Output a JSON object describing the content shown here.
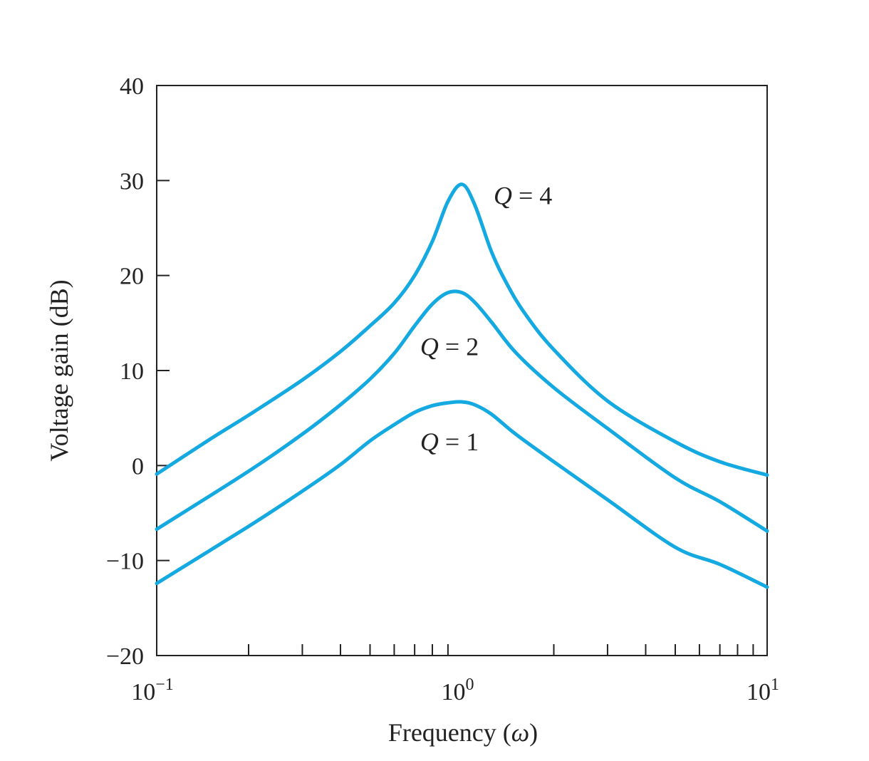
{
  "chart_data": {
    "type": "line",
    "title": "",
    "xlabel_text": "Frequency (",
    "xlabel_symbol": "ω",
    "xlabel_close": ")",
    "ylabel": "Voltage gain (dB)",
    "x_scale": "log",
    "xlim": [
      0.1,
      10
    ],
    "ylim": [
      -20,
      40
    ],
    "grid": false,
    "legend": "none",
    "x_ticks": [
      {
        "value": 0.1,
        "base": "10",
        "exp": "−1"
      },
      {
        "value": 1,
        "base": "10",
        "exp": "0"
      },
      {
        "value": 10,
        "base": "10",
        "exp": "1"
      }
    ],
    "y_ticks": [
      {
        "value": 40,
        "label": "40"
      },
      {
        "value": 30,
        "label": "30"
      },
      {
        "value": 20,
        "label": "20"
      },
      {
        "value": 10,
        "label": "10"
      },
      {
        "value": 0,
        "label": "0"
      },
      {
        "value": -10,
        "label": "−10"
      },
      {
        "value": -20,
        "label": "−20"
      }
    ],
    "line_color": "#14a9e1",
    "series": [
      {
        "q": 4,
        "label_var": "Q",
        "label_rest": " = 4",
        "label_at": [
          1.27,
          27.5
        ],
        "x": [
          0.1,
          0.15,
          0.2,
          0.3,
          0.4,
          0.5,
          0.6,
          0.7,
          0.8,
          0.9,
          1.0,
          1.1,
          1.25,
          1.4,
          1.6,
          2.0,
          3.0,
          5.0,
          7.0,
          10.0
        ],
        "y": [
          -0.9,
          2.8,
          5.3,
          9.0,
          12.0,
          14.7,
          17.1,
          20.0,
          23.6,
          27.8,
          29.6,
          27.5,
          22.5,
          19.2,
          16.1,
          12.2,
          6.8,
          2.5,
          0.4,
          -1.0
        ]
      },
      {
        "q": 2,
        "label_var": "Q",
        "label_rest": " = 2",
        "label_at": [
          0.73,
          11.6
        ],
        "x": [
          0.1,
          0.2,
          0.3,
          0.4,
          0.5,
          0.6,
          0.7,
          0.8,
          0.9,
          1.0,
          1.1,
          1.25,
          1.5,
          2.0,
          3.0,
          5.0,
          7.0,
          10.0
        ],
        "y": [
          -6.7,
          -0.6,
          3.3,
          6.4,
          9.1,
          11.8,
          14.7,
          17.0,
          18.2,
          18.2,
          17.2,
          15.1,
          11.9,
          8.2,
          3.9,
          -1.3,
          -3.8,
          -6.9
        ]
      },
      {
        "q": 1,
        "label_var": "Q",
        "label_rest": " = 1",
        "label_at": [
          0.73,
          1.6
        ],
        "x": [
          0.1,
          0.2,
          0.3,
          0.4,
          0.5,
          0.6,
          0.7,
          0.8,
          0.9,
          1.0,
          1.1,
          1.25,
          1.5,
          2.0,
          3.0,
          5.0,
          7.0,
          10.0
        ],
        "y": [
          -12.4,
          -6.4,
          -2.7,
          0.1,
          2.6,
          4.3,
          5.6,
          6.3,
          6.6,
          6.7,
          6.4,
          5.4,
          3.3,
          0.4,
          -3.6,
          -8.6,
          -10.4,
          -12.8
        ]
      }
    ]
  }
}
